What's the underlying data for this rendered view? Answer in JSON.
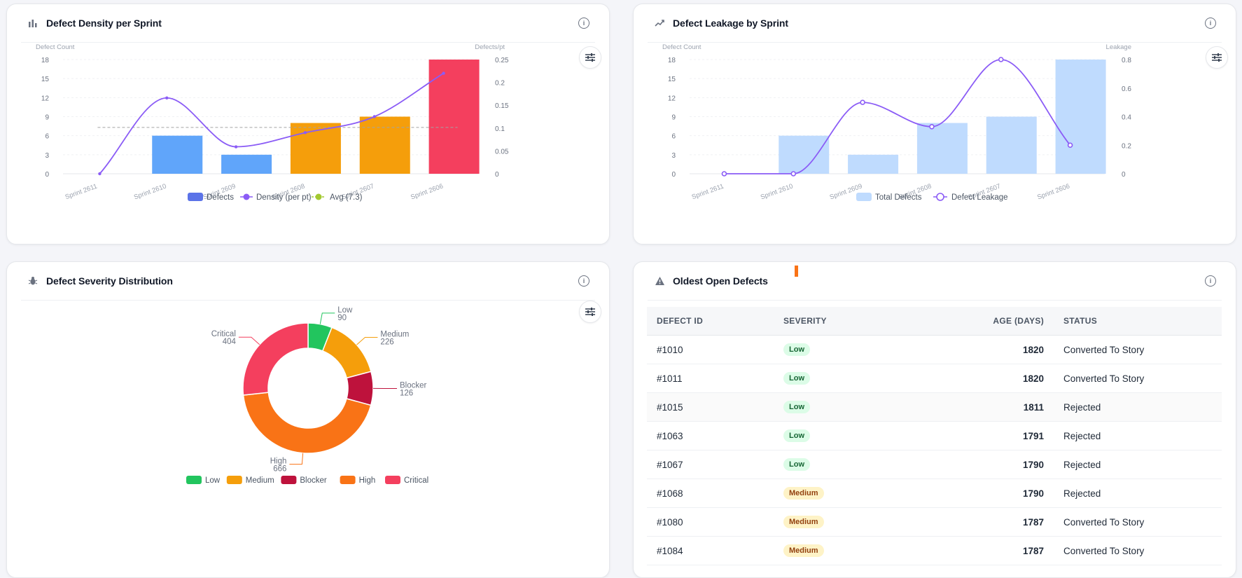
{
  "cards": {
    "density": {
      "title": "Defect Density per Sprint",
      "icon": "bar-chart-icon"
    },
    "leakage": {
      "title": "Defect Leakage by Sprint",
      "icon": "trend-up-icon"
    },
    "severity": {
      "title": "Defect Severity Distribution",
      "icon": "bug-icon"
    },
    "oldest": {
      "title": "Oldest Open Defects",
      "icon": "warning-triangle-icon"
    }
  },
  "chart_data": [
    {
      "id": "density",
      "type": "bar",
      "categories": [
        "Sprint 2611",
        "Sprint 2610",
        "Sprint 2609",
        "Sprint 2608",
        "Sprint 2607",
        "Sprint 2606"
      ],
      "series": [
        {
          "name": "Defects",
          "type": "bar",
          "axis": "left",
          "values": [
            0,
            6,
            3,
            8,
            9,
            18
          ],
          "colors": [
            "#60a5fa",
            "#60a5fa",
            "#60a5fa",
            "#f59e0b",
            "#f59e0b",
            "#f43f5e"
          ]
        },
        {
          "name": "Density (per pt)",
          "type": "line",
          "axis": "right",
          "values": [
            0,
            0.166,
            0.059,
            0.09,
            0.125,
            0.22
          ]
        },
        {
          "name": "Avg (7.3)",
          "type": "reference",
          "axis": "left",
          "value": 7.3
        }
      ],
      "ylabel_left": "Defect Count",
      "ylabel_right": "Defects/pt",
      "ylim_left": [
        0,
        18
      ],
      "ylim_right": [
        0,
        0.25
      ],
      "yticks_left": [
        "0",
        "3",
        "6",
        "9",
        "12",
        "15",
        "18"
      ],
      "yticks_right": [
        "0",
        "0.05",
        "0.1",
        "0.15",
        "0.2",
        "0.25"
      ],
      "legend": "bottom",
      "legend_colors": [
        "#5b73e8",
        "#8b5cf6",
        "#a3c930"
      ],
      "grid": true
    },
    {
      "id": "leakage",
      "type": "bar",
      "categories": [
        "Sprint 2611",
        "Sprint 2610",
        "Sprint 2609",
        "Sprint 2608",
        "Sprint 2607",
        "Sprint 2606"
      ],
      "series": [
        {
          "name": "Total Defects",
          "type": "bar",
          "axis": "left",
          "values": [
            0,
            6,
            3,
            8,
            9,
            18
          ],
          "color": "#bfdbfe"
        },
        {
          "name": "Defect Leakage",
          "type": "line",
          "axis": "right",
          "values": [
            0,
            0,
            0.5,
            0.33,
            0.8,
            0.2
          ],
          "color": "#8b5cf6"
        }
      ],
      "ylabel_left": "Defect Count",
      "ylabel_right": "Leakage",
      "ylim_left": [
        0,
        18
      ],
      "ylim_right": [
        0,
        0.8
      ],
      "yticks_left": [
        "0",
        "3",
        "6",
        "9",
        "12",
        "15",
        "18"
      ],
      "yticks_right": [
        "0",
        "0.2",
        "0.4",
        "0.6",
        "0.8"
      ],
      "legend": "bottom",
      "grid": true
    },
    {
      "id": "severity",
      "type": "pie",
      "donut": true,
      "labels": [
        "Low",
        "Medium",
        "Blocker",
        "High",
        "Critical"
      ],
      "values": [
        90,
        226,
        126,
        666,
        404
      ],
      "colors": [
        "#22c55e",
        "#f59e0b",
        "#be123c",
        "#f97316",
        "#f43f5e"
      ],
      "legend": "bottom"
    }
  ],
  "oldest_table": {
    "columns": [
      "DEFECT ID",
      "SEVERITY",
      "AGE (DAYS)",
      "STATUS"
    ],
    "rows": [
      {
        "id": "#1010",
        "severity": "Low",
        "age": "1820",
        "status": "Converted To Story"
      },
      {
        "id": "#1011",
        "severity": "Low",
        "age": "1820",
        "status": "Converted To Story"
      },
      {
        "id": "#1015",
        "severity": "Low",
        "age": "1811",
        "status": "Rejected"
      },
      {
        "id": "#1063",
        "severity": "Low",
        "age": "1791",
        "status": "Rejected"
      },
      {
        "id": "#1067",
        "severity": "Low",
        "age": "1790",
        "status": "Rejected"
      },
      {
        "id": "#1068",
        "severity": "Medium",
        "age": "1790",
        "status": "Rejected"
      },
      {
        "id": "#1080",
        "severity": "Medium",
        "age": "1787",
        "status": "Converted To Story"
      },
      {
        "id": "#1084",
        "severity": "Medium",
        "age": "1787",
        "status": "Converted To Story"
      }
    ]
  }
}
